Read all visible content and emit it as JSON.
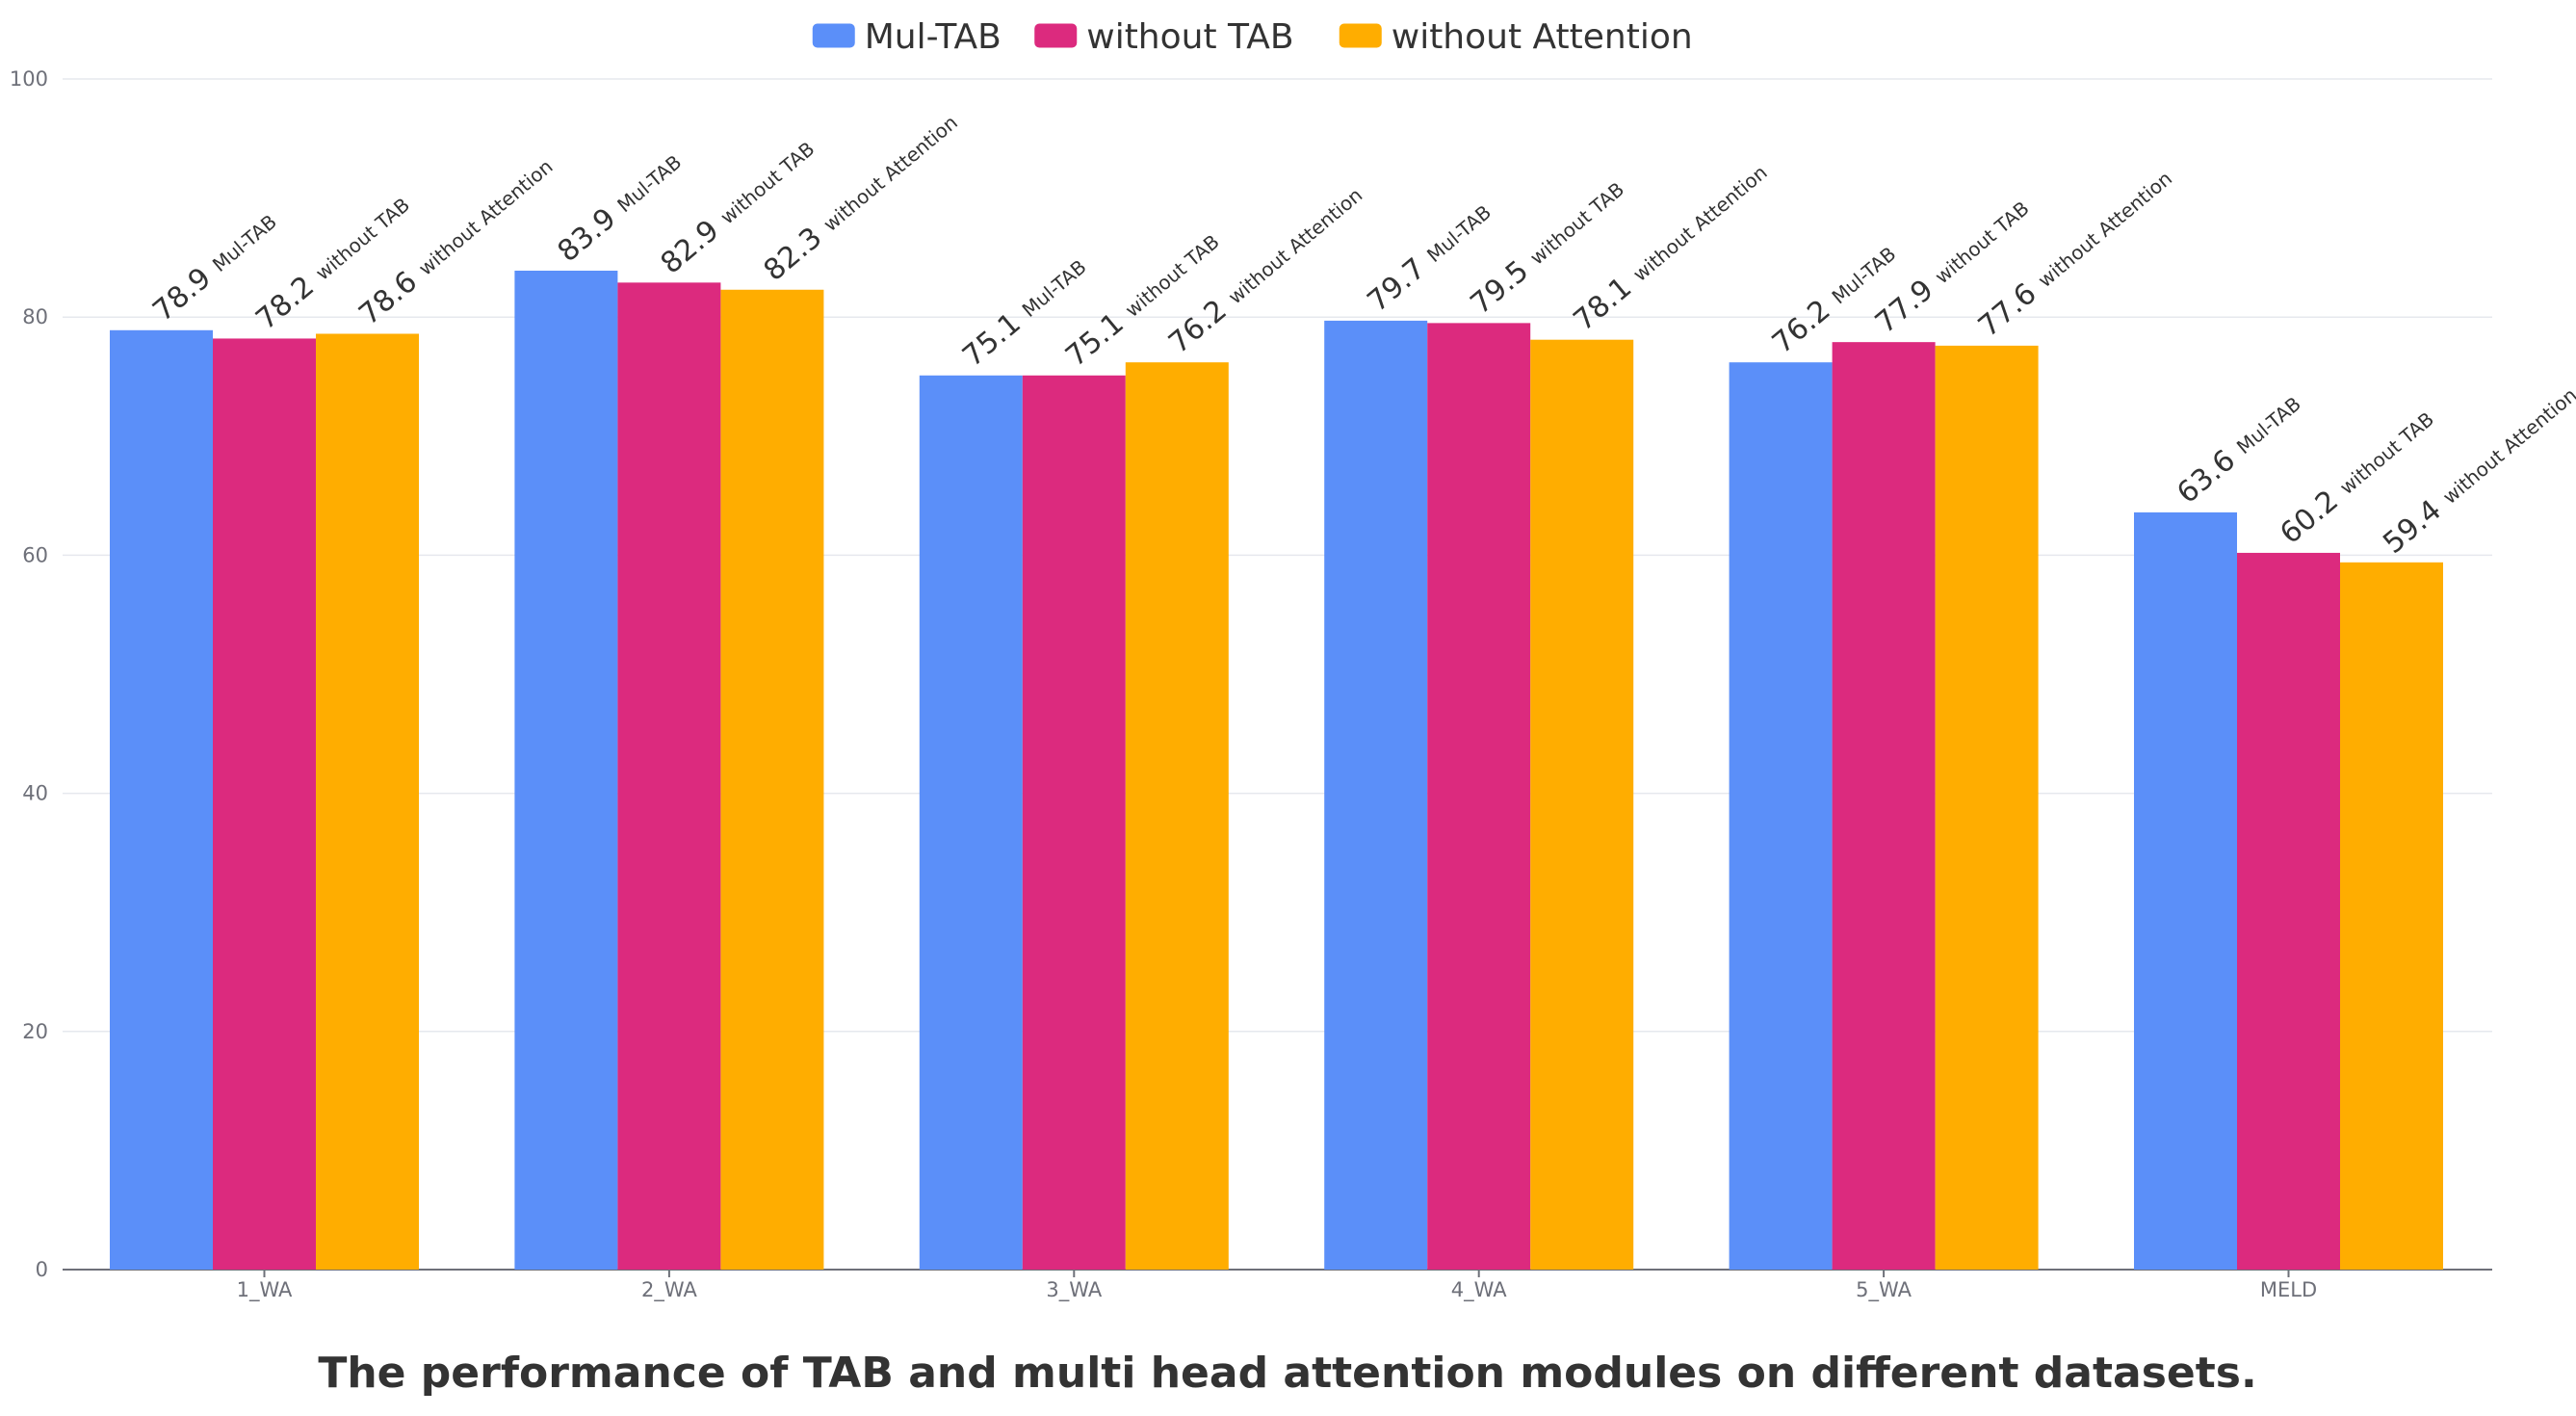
{
  "chart_data": {
    "type": "bar",
    "title": "The performance of TAB and multi head attention modules on different datasets.",
    "xlabel": "",
    "ylabel": "",
    "ylim": [
      0,
      100
    ],
    "yticks": [
      0,
      20,
      40,
      60,
      80,
      100
    ],
    "categories": [
      "1_WA",
      "2_WA",
      "3_WA",
      "4_WA",
      "5_WA",
      "MELD"
    ],
    "grid": true,
    "legend_position": "top-center",
    "series": [
      {
        "name": "Mul-TAB",
        "color": "#5b8ff9",
        "values": [
          78.9,
          83.9,
          75.1,
          79.7,
          76.2,
          63.6
        ]
      },
      {
        "name": "without TAB",
        "color": "#dc2a7e",
        "values": [
          78.2,
          82.9,
          75.1,
          79.5,
          77.9,
          60.2
        ]
      },
      {
        "name": "without Attention",
        "color": "#ffad00",
        "values": [
          78.6,
          82.3,
          76.2,
          78.1,
          77.6,
          59.4
        ]
      }
    ]
  }
}
